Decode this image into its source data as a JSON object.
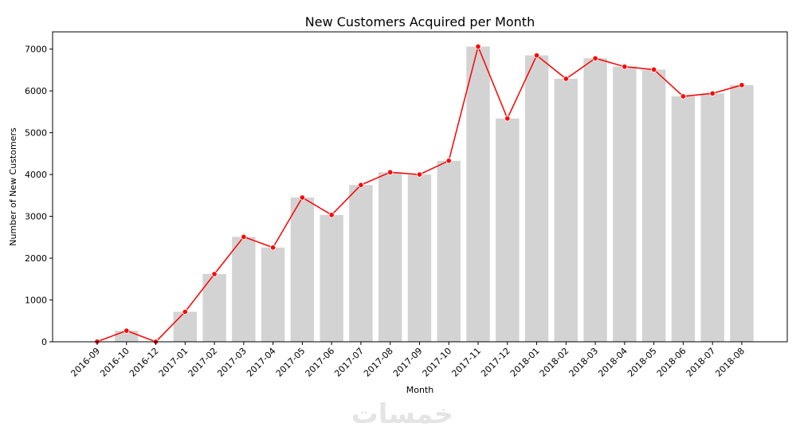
{
  "chart_data": {
    "type": "bar",
    "title": "New Customers Acquired per Month",
    "xlabel": "Month",
    "ylabel": "Number of New Customers",
    "categories": [
      "2016-09",
      "2016-10",
      "2016-12",
      "2017-01",
      "2017-02",
      "2017-03",
      "2017-04",
      "2017-05",
      "2017-06",
      "2017-07",
      "2017-08",
      "2017-09",
      "2017-10",
      "2017-11",
      "2017-12",
      "2018-01",
      "2018-02",
      "2018-03",
      "2018-04",
      "2018-05",
      "2018-06",
      "2018-07",
      "2018-08"
    ],
    "series": [
      {
        "type": "bar",
        "values": [
          4,
          265,
          1,
          717,
          1620,
          2509,
          2254,
          3450,
          3034,
          3750,
          4054,
          4000,
          4330,
          7060,
          5340,
          6850,
          6290,
          6780,
          6580,
          6510,
          5870,
          5940,
          6140
        ]
      },
      {
        "type": "line",
        "values": [
          4,
          265,
          1,
          717,
          1620,
          2509,
          2254,
          3450,
          3034,
          3750,
          4054,
          4000,
          4330,
          7060,
          5340,
          6850,
          6290,
          6780,
          6580,
          6510,
          5870,
          5940,
          6140
        ]
      }
    ],
    "yticks": [
      0,
      1000,
      2000,
      3000,
      4000,
      5000,
      6000,
      7000
    ],
    "ylim": [
      0,
      7412
    ],
    "grid": false,
    "colors": {
      "bar": "#d3d3d3",
      "line": "#ff0000",
      "marker": "#ff0000"
    }
  },
  "watermark": "خمسات"
}
